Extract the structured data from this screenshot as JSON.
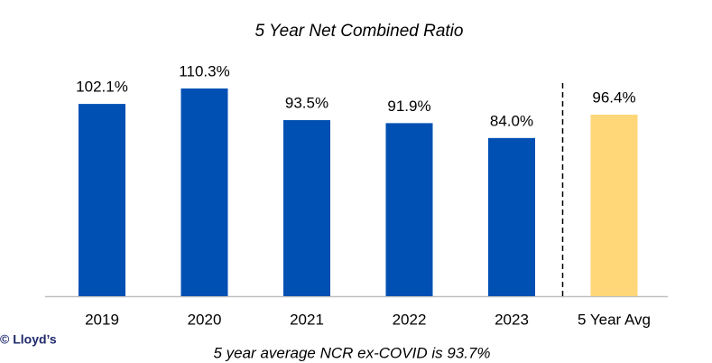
{
  "chart_data": {
    "type": "bar",
    "title": "5 Year Net Combined Ratio",
    "categories": [
      "2019",
      "2020",
      "2021",
      "2022",
      "2023",
      "5 Year Avg"
    ],
    "values": [
      102.1,
      110.3,
      93.5,
      91.9,
      84.0,
      96.4
    ],
    "value_labels": [
      "102.1%",
      "110.3%",
      "93.5%",
      "91.9%",
      "84.0%",
      "96.4%"
    ],
    "colors": [
      "#0050b4",
      "#0050b4",
      "#0050b4",
      "#0050b4",
      "#0050b4",
      "#ffd678"
    ],
    "footnote": "5 year average NCR ex-COVID is 93.7%",
    "copyright": "© Lloyd’s"
  }
}
